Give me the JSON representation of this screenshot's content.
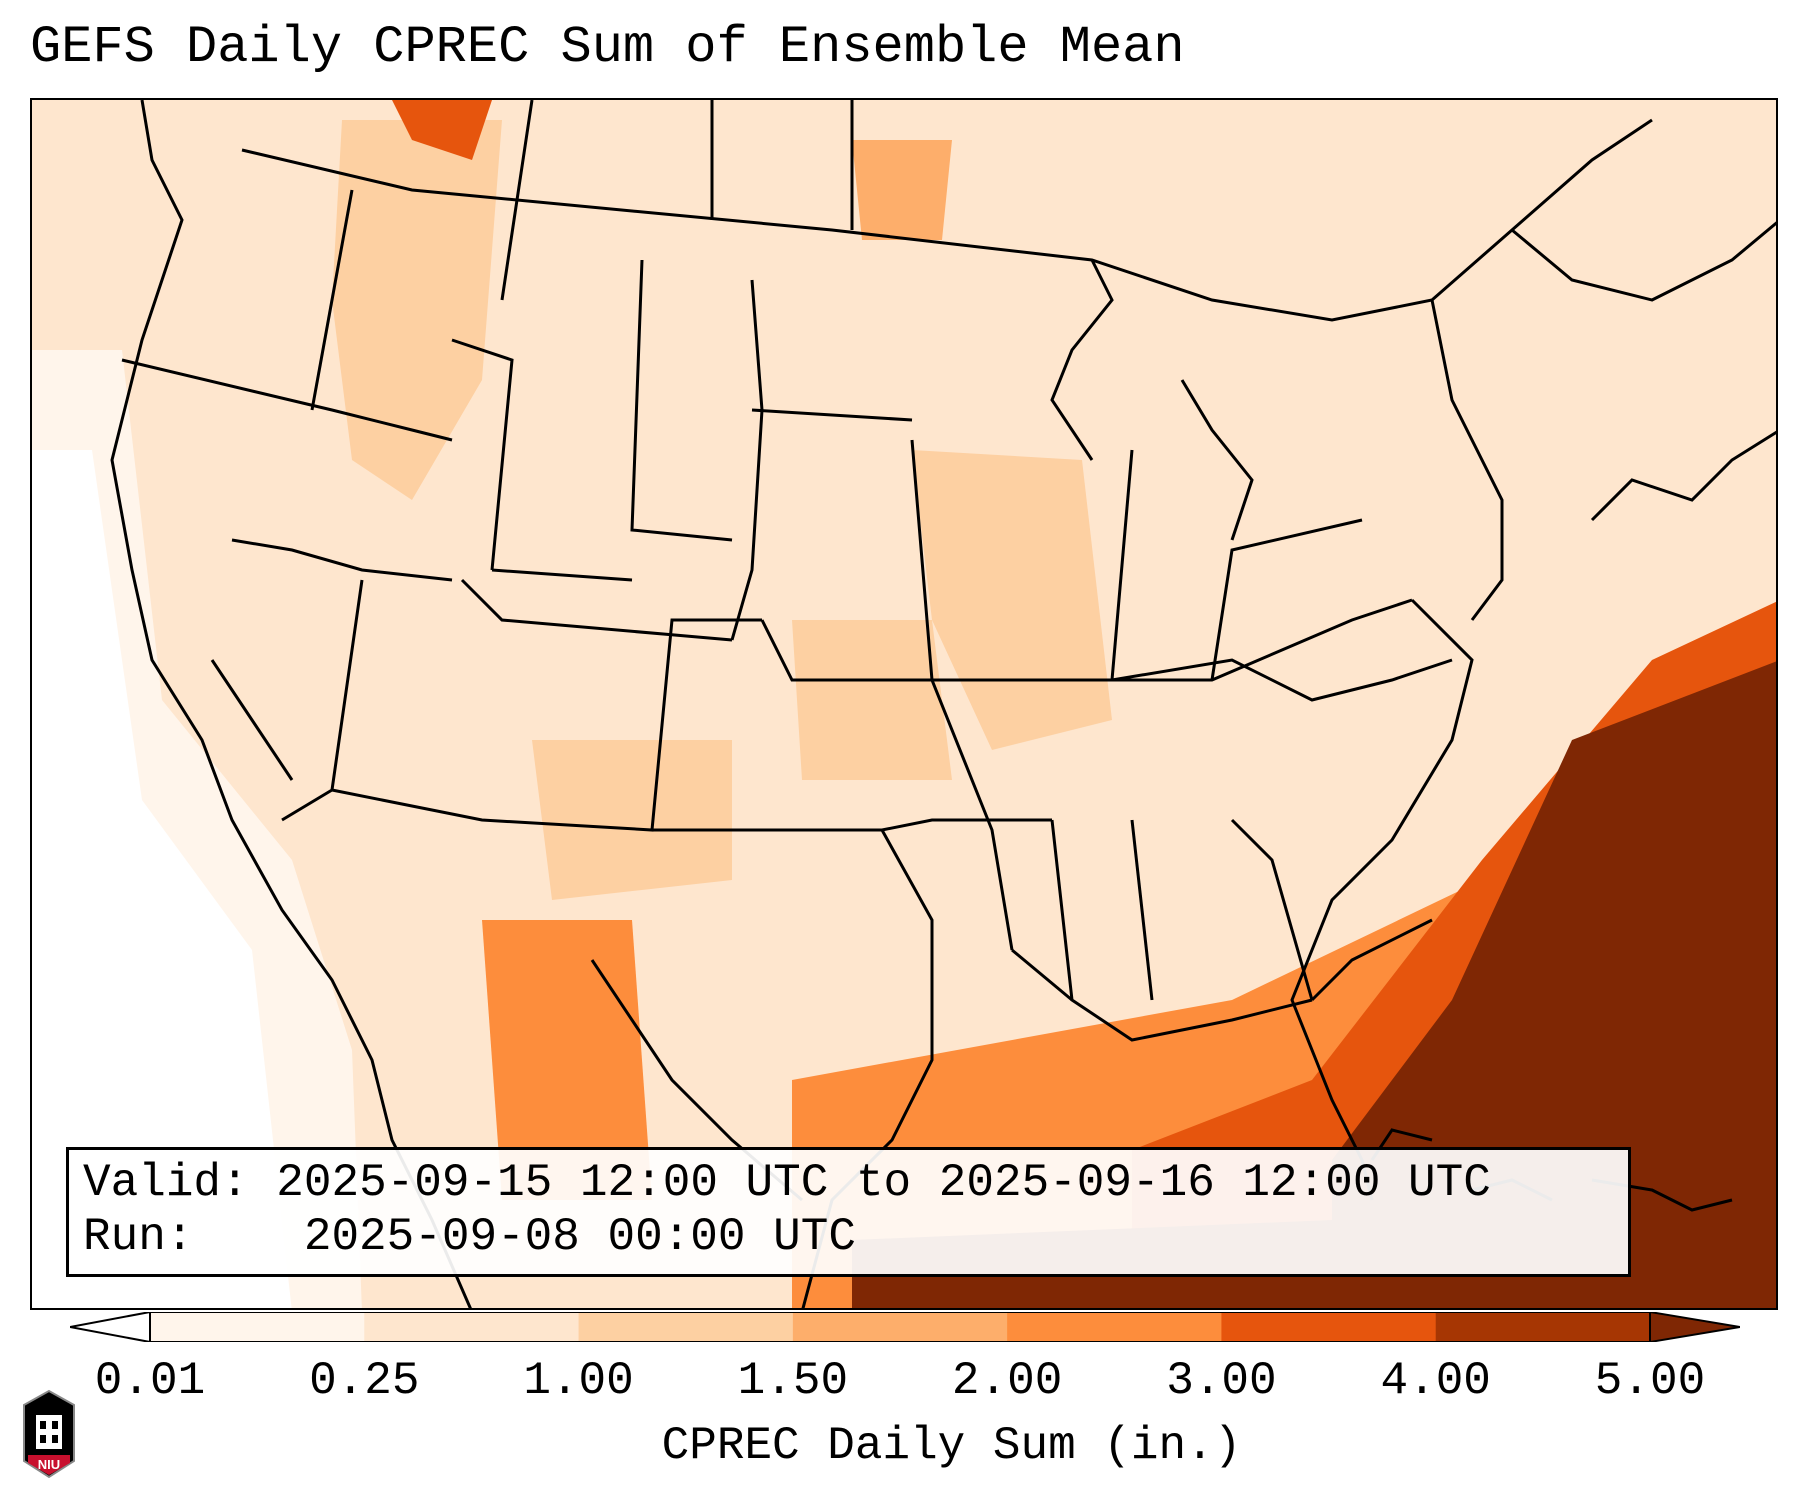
{
  "title": "GEFS Daily CPREC Sum of Ensemble Mean",
  "info": {
    "valid_label": "Valid:",
    "valid_value": "2025-09-15 12:00 UTC to 2025-09-16 12:00 UTC",
    "run_label": "Run:",
    "run_value": "2025-09-08 00:00 UTC"
  },
  "colorbar": {
    "label": "CPREC Daily Sum (in.)",
    "ticks": [
      "0.01",
      "0.25",
      "1.00",
      "1.50",
      "2.00",
      "3.00",
      "4.00",
      "5.00"
    ],
    "colors": [
      "#fff5eb",
      "#fee6ce",
      "#fdd0a2",
      "#fdae6b",
      "#fd8d3c",
      "#e6550d",
      "#a63603",
      "#7f2704"
    ]
  },
  "logo": {
    "text": "NIU",
    "colors": {
      "primary": "#c8102e",
      "secondary": "#000000"
    }
  }
}
